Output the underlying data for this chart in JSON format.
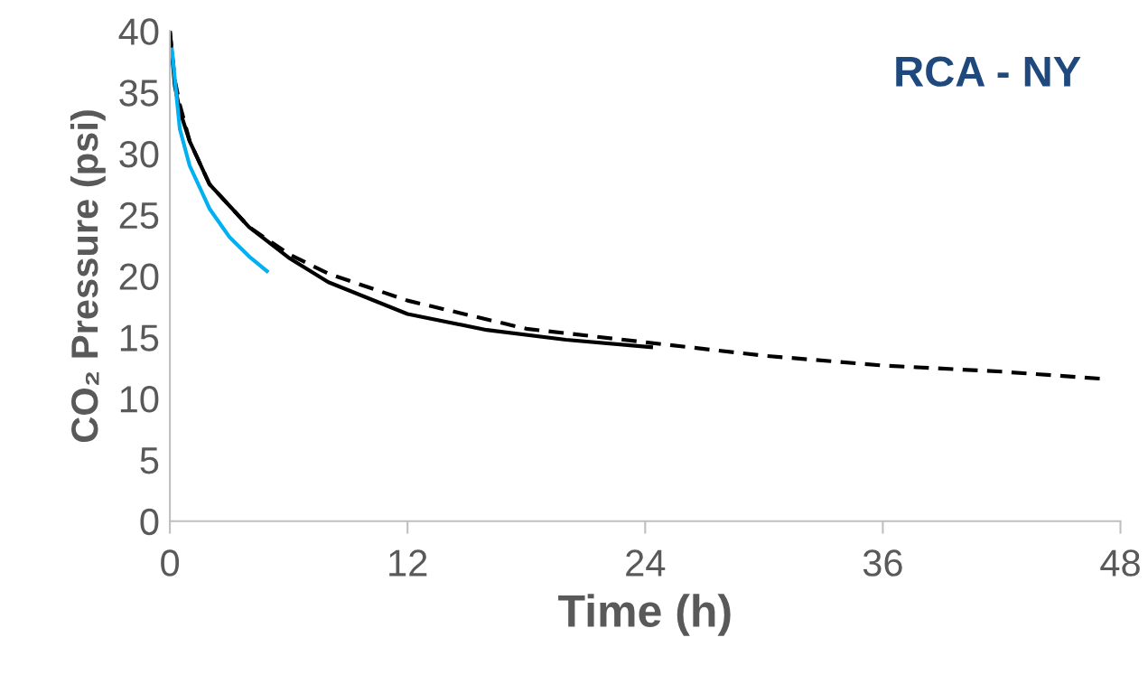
{
  "chart_data": {
    "type": "line",
    "xlabel": "Time (h)",
    "ylabel": "CO₂ Pressure (psi)",
    "annotations": [
      "RCA - NY"
    ],
    "xlim": [
      0,
      48
    ],
    "xticks": [
      0,
      12,
      24,
      36,
      48
    ],
    "ylim": [
      0,
      40
    ],
    "yticks": [
      0,
      5,
      10,
      15,
      20,
      25,
      30,
      35,
      40
    ],
    "grid": false,
    "legend": false,
    "marker": "none",
    "series": [
      {
        "color": "#000000",
        "line_style": "dashed",
        "x": [
          0,
          0.25,
          0.5,
          1,
          2,
          4,
          6,
          8,
          12,
          18,
          24,
          30,
          36,
          42,
          47.2
        ],
        "values": [
          40,
          36,
          34,
          31,
          27.5,
          24,
          21.8,
          20.2,
          18,
          15.7,
          14.6,
          13.5,
          12.7,
          12.2,
          11.6
        ]
      },
      {
        "color": "#000000",
        "line_style": "solid",
        "x": [
          0,
          0.25,
          0.5,
          1,
          2,
          4,
          6,
          8,
          12,
          16,
          20,
          24.3
        ],
        "values": [
          40,
          35.5,
          33.5,
          31,
          27.5,
          24,
          21.5,
          19.5,
          16.9,
          15.6,
          14.8,
          14.2
        ]
      },
      {
        "color": "#00b0f0",
        "line_style": "solid",
        "x": [
          0.1,
          0.5,
          1,
          2,
          3,
          4,
          4.9
        ],
        "values": [
          38.5,
          32,
          29,
          25.5,
          23.2,
          21.6,
          20.4
        ]
      }
    ]
  }
}
